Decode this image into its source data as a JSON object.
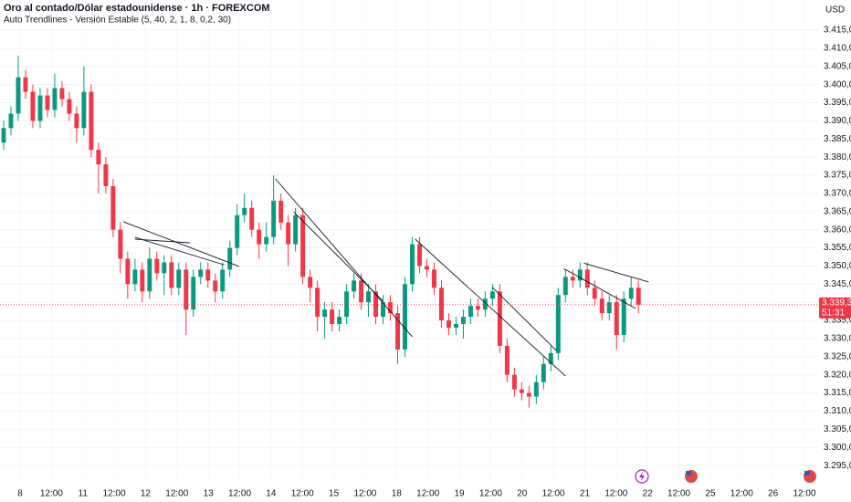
{
  "chart_data": {
    "type": "candlestick",
    "title": "Oro al contado/Dólar estadounidense · 1h · FOREXCOM",
    "subtitle": "Auto Trendlines - Versión Estable (5, 40, 2, 1, 8, 0,2, 30)",
    "currency": "USD",
    "up_color": "#089981",
    "down_color": "#f23645",
    "grid": true,
    "xlim": [
      0,
      112
    ],
    "ylim": [
      3290,
      3423.3
    ],
    "xticks": [
      {
        "value": 2.75,
        "label": "8"
      },
      {
        "value": 7.05,
        "label": "12:00"
      },
      {
        "value": 11.35,
        "label": "11"
      },
      {
        "value": 15.65,
        "label": "12:00"
      },
      {
        "value": 19.95,
        "label": "12"
      },
      {
        "value": 24.25,
        "label": "12:00"
      },
      {
        "value": 28.55,
        "label": "13"
      },
      {
        "value": 32.85,
        "label": "12:00"
      },
      {
        "value": 37.15,
        "label": "14"
      },
      {
        "value": 41.45,
        "label": "12:00"
      },
      {
        "value": 45.75,
        "label": "15"
      },
      {
        "value": 50.05,
        "label": "12:00"
      },
      {
        "value": 54.35,
        "label": "18"
      },
      {
        "value": 58.65,
        "label": "12:00"
      },
      {
        "value": 62.95,
        "label": "19"
      },
      {
        "value": 67.25,
        "label": "12:00"
      },
      {
        "value": 71.55,
        "label": "20"
      },
      {
        "value": 75.85,
        "label": "12:00"
      },
      {
        "value": 80.15,
        "label": "21"
      },
      {
        "value": 84.45,
        "label": "12:00"
      },
      {
        "value": 88.75,
        "label": "22"
      },
      {
        "value": 93.05,
        "label": "12:00"
      },
      {
        "value": 97.35,
        "label": "25"
      },
      {
        "value": 101.65,
        "label": "12:00"
      },
      {
        "value": 105.95,
        "label": "26"
      },
      {
        "value": 110.25,
        "label": "12:00"
      }
    ],
    "yticks": [
      {
        "value": 3295,
        "label": "3.295,00"
      },
      {
        "value": 3300,
        "label": "3.300,00"
      },
      {
        "value": 3305,
        "label": "3.305,00"
      },
      {
        "value": 3310,
        "label": "3.310,00"
      },
      {
        "value": 3315,
        "label": "3.315,00"
      },
      {
        "value": 3320,
        "label": "3.320,00"
      },
      {
        "value": 3325,
        "label": "3.325,00"
      },
      {
        "value": 3330,
        "label": "3.330,00"
      },
      {
        "value": 3335,
        "label": "3.335,00"
      },
      {
        "value": 3340,
        "label": "3.340,00"
      },
      {
        "value": 3345,
        "label": "3.345,00"
      },
      {
        "value": 3350,
        "label": "3.350,00"
      },
      {
        "value": 3355,
        "label": "3.355,00"
      },
      {
        "value": 3360,
        "label": "3.360,00"
      },
      {
        "value": 3365,
        "label": "3.365,00"
      },
      {
        "value": 3370,
        "label": "3.370,00"
      },
      {
        "value": 3375,
        "label": "3.375,00"
      },
      {
        "value": 3380,
        "label": "3.380,00"
      },
      {
        "value": 3385,
        "label": "3.385,00"
      },
      {
        "value": 3390,
        "label": "3.390,00"
      },
      {
        "value": 3395,
        "label": "3.395,00"
      },
      {
        "value": 3400,
        "label": "3.400,00"
      },
      {
        "value": 3405,
        "label": "3.405,00"
      },
      {
        "value": 3410,
        "label": "3.410,00"
      },
      {
        "value": 3415,
        "label": "3.415,00"
      }
    ],
    "x": [
      0.5,
      1.5,
      2.5,
      3.5,
      4.5,
      5.5,
      6.5,
      7.5,
      8.5,
      9.5,
      10.5,
      11.5,
      12.5,
      13.5,
      14.5,
      15.5,
      16.5,
      17.5,
      18.5,
      19.5,
      20.5,
      21.5,
      22.5,
      23.5,
      24.5,
      25.5,
      26.5,
      27.5,
      28.5,
      29.5,
      30.5,
      31.5,
      32.5,
      33.5,
      34.5,
      35.5,
      36.5,
      37.5,
      38.5,
      39.5,
      40.5,
      41.5,
      42.5,
      43.5,
      44.5,
      45.5,
      46.5,
      47.5,
      48.5,
      49.5,
      50.5,
      51.5,
      52.5,
      53.5,
      54.5,
      55.5,
      56.5,
      57.5,
      58.5,
      59.5,
      60.5,
      61.5,
      62.5,
      63.5,
      64.5,
      65.5,
      66.5,
      67.5,
      68.5,
      69.5,
      70.5,
      71.5,
      72.5,
      73.5,
      74.5,
      75.5,
      76.5,
      77.5,
      78.5,
      79.5,
      80.5,
      81.5,
      82.5,
      83.5,
      84.5,
      85.5,
      86.5,
      87.5
    ],
    "open": [
      3384,
      3388,
      3392,
      3402,
      3398,
      3390,
      3397,
      3393,
      3399,
      3396,
      3392,
      3388,
      3398,
      3382,
      3378,
      3372,
      3360,
      3352,
      3345,
      3349,
      3343,
      3352,
      3348,
      3351,
      3344,
      3349,
      3338,
      3347,
      3349,
      3346,
      3343,
      3349,
      3355,
      3364,
      3366,
      3360,
      3356,
      3358,
      3368,
      3362,
      3356,
      3364,
      3347,
      3344,
      3336,
      3338,
      3334,
      3336,
      3343,
      3346,
      3340,
      3343,
      3336,
      3340,
      3337,
      3327,
      3345,
      3356,
      3350,
      3349,
      3344,
      3335,
      3333,
      3334,
      3336,
      3339,
      3338,
      3341,
      3343,
      3328,
      3320,
      3316,
      3315,
      3314,
      3318,
      3323,
      3326,
      3342,
      3347,
      3346,
      3349,
      3344,
      3341,
      3337,
      3340,
      3331,
      3341,
      3344
    ],
    "high": [
      3390,
      3394,
      3408,
      3404,
      3400,
      3399,
      3399,
      3403,
      3401,
      3398,
      3394,
      3405,
      3400,
      3384,
      3380,
      3374,
      3362,
      3354,
      3352,
      3351,
      3355,
      3354,
      3353,
      3353,
      3351,
      3351,
      3349,
      3351,
      3351,
      3348,
      3351,
      3357,
      3367,
      3370,
      3368,
      3362,
      3362,
      3375,
      3370,
      3364,
      3366,
      3366,
      3349,
      3346,
      3340,
      3340,
      3338,
      3345,
      3348,
      3348,
      3345,
      3345,
      3342,
      3342,
      3339,
      3347,
      3358,
      3358,
      3352,
      3351,
      3346,
      3337,
      3336,
      3338,
      3341,
      3341,
      3343,
      3345,
      3345,
      3330,
      3322,
      3318,
      3317,
      3320,
      3325,
      3328,
      3344,
      3349,
      3349,
      3351,
      3351,
      3346,
      3343,
      3342,
      3342,
      3343,
      3347,
      3346
    ],
    "low": [
      3382,
      3386,
      3390,
      3396,
      3388,
      3388,
      3391,
      3391,
      3394,
      3390,
      3384,
      3386,
      3380,
      3370,
      3370,
      3358,
      3348,
      3341,
      3343,
      3340,
      3341,
      3346,
      3342,
      3342,
      3342,
      3331,
      3336,
      3345,
      3344,
      3340,
      3341,
      3347,
      3353,
      3362,
      3358,
      3352,
      3354,
      3356,
      3360,
      3350,
      3354,
      3345,
      3340,
      3332,
      3330,
      3332,
      3332,
      3334,
      3341,
      3338,
      3336,
      3334,
      3334,
      3335,
      3323,
      3325,
      3343,
      3348,
      3347,
      3342,
      3333,
      3331,
      3331,
      3330,
      3334,
      3336,
      3336,
      3339,
      3326,
      3318,
      3314,
      3313,
      3311,
      3312,
      3316,
      3321,
      3324,
      3340,
      3344,
      3344,
      3342,
      3339,
      3335,
      3335,
      3327,
      3329,
      3339,
      3337
    ],
    "close": [
      3388,
      3392,
      3402,
      3398,
      3390,
      3397,
      3393,
      3399,
      3396,
      3392,
      3388,
      3398,
      3382,
      3378,
      3372,
      3360,
      3352,
      3345,
      3349,
      3343,
      3352,
      3348,
      3351,
      3344,
      3349,
      3338,
      3347,
      3349,
      3346,
      3343,
      3349,
      3355,
      3364,
      3366,
      3360,
      3356,
      3358,
      3368,
      3362,
      3356,
      3364,
      3347,
      3344,
      3336,
      3338,
      3334,
      3336,
      3343,
      3346,
      3340,
      3343,
      3336,
      3340,
      3337,
      3327,
      3345,
      3356,
      3350,
      3349,
      3344,
      3335,
      3333,
      3334,
      3336,
      3339,
      3338,
      3341,
      3343,
      3328,
      3320,
      3316,
      3315,
      3314,
      3318,
      3323,
      3326,
      3342,
      3347,
      3346,
      3349,
      3344,
      3341,
      3337,
      3340,
      3331,
      3341,
      3344,
      3339.34
    ],
    "trendlines": [
      {
        "x": [
          16.9,
          32.75
        ],
        "y": [
          3362.2,
          3349.9
        ]
      },
      {
        "x": [
          18.5,
          30.75
        ],
        "y": [
          3357.9,
          3350.3
        ]
      },
      {
        "x": [
          18.5,
          26
        ],
        "y": [
          3357.4,
          3356.4
        ]
      },
      {
        "x": [
          37.75,
          56.5
        ],
        "y": [
          3374.0,
          3330.5
        ]
      },
      {
        "x": [
          40.25,
          52.5
        ],
        "y": [
          3364.9,
          3340.3
        ]
      },
      {
        "x": [
          56.9,
          77.5
        ],
        "y": [
          3357.4,
          3319.7
        ]
      },
      {
        "x": [
          67.5,
          76.25
        ],
        "y": [
          3344.1,
          3326.7
        ]
      },
      {
        "x": [
          77.25,
          87.1
        ],
        "y": [
          3349.3,
          3338.3
        ]
      },
      {
        "x": [
          80,
          88.9
        ],
        "y": [
          3350.8,
          3345.6
        ]
      }
    ],
    "last_price": {
      "value": 3339.34,
      "label": "3.339,34"
    },
    "countdown": "51:31"
  }
}
